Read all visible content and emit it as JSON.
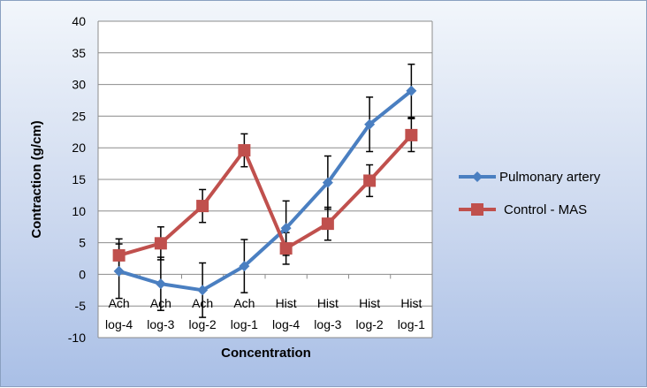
{
  "chart_data": {
    "type": "line",
    "title": "",
    "xlabel": "Concentration",
    "ylabel": "Contraction (g/cm)",
    "ylim": [
      -10,
      40
    ],
    "yticks": [
      40,
      35,
      30,
      25,
      20,
      15,
      10,
      5,
      0,
      -5,
      -10
    ],
    "categories": [
      {
        "line1": "Ach",
        "line2": "log-4"
      },
      {
        "line1": "Ach",
        "line2": "log-3"
      },
      {
        "line1": "Ach",
        "line2": "log-2"
      },
      {
        "line1": "Ach",
        "line2": "log-1"
      },
      {
        "line1": "Hist",
        "line2": "log-4"
      },
      {
        "line1": "Hist",
        "line2": "log-3"
      },
      {
        "line1": "Hist",
        "line2": "log-2"
      },
      {
        "line1": "Hist",
        "line2": "log-1"
      }
    ],
    "grid": "horizontal",
    "legend_position": "right",
    "series": [
      {
        "name": "Pulmonary artery",
        "color": "#4a7fc1",
        "marker": "diamond",
        "values": [
          0.5,
          -1.5,
          -2.5,
          1.3,
          7.3,
          14.5,
          23.7,
          29.0
        ],
        "errors": [
          4.3,
          4.2,
          4.3,
          4.2,
          4.3,
          4.2,
          4.3,
          4.2
        ]
      },
      {
        "name": "Control - MAS",
        "color": "#c0504d",
        "marker": "square",
        "values": [
          3.0,
          4.9,
          10.8,
          19.6,
          4.1,
          8.0,
          14.8,
          22.0
        ],
        "errors": [
          2.6,
          2.6,
          2.6,
          2.6,
          2.5,
          2.6,
          2.5,
          2.6
        ]
      }
    ]
  }
}
